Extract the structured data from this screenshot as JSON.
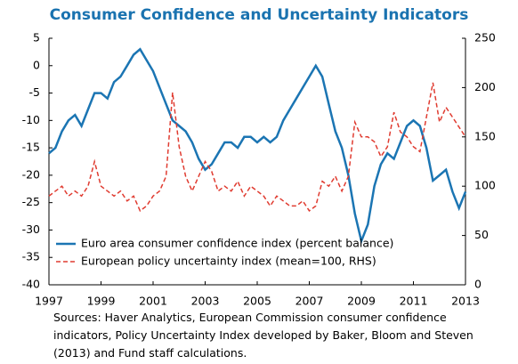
{
  "chart_data": {
    "type": "line",
    "title": "Consumer Confidence and Uncertainty Indicators",
    "note": "Sources: Haver Analytics, European Commission consumer confidence indicators, Policy Uncertainty Index developed by Baker, Bloom and Steven (2013) and Fund staff calculations.",
    "x": [
      1997,
      1997.25,
      1997.5,
      1997.75,
      1998,
      1998.25,
      1998.5,
      1998.75,
      1999,
      1999.25,
      1999.5,
      1999.75,
      2000,
      2000.25,
      2000.5,
      2000.75,
      2001,
      2001.25,
      2001.5,
      2001.75,
      2002,
      2002.25,
      2002.5,
      2002.75,
      2003,
      2003.25,
      2003.5,
      2003.75,
      2004,
      2004.25,
      2004.5,
      2004.75,
      2005,
      2005.25,
      2005.5,
      2005.75,
      2006,
      2006.25,
      2006.5,
      2006.75,
      2007,
      2007.25,
      2007.5,
      2007.75,
      2008,
      2008.25,
      2008.5,
      2008.75,
      2009,
      2009.25,
      2009.5,
      2009.75,
      2010,
      2010.25,
      2010.5,
      2010.75,
      2011,
      2011.25,
      2011.5,
      2011.75,
      2012,
      2012.25,
      2012.5,
      2012.75,
      2013
    ],
    "xlim": [
      1997,
      2013
    ],
    "xticks": [
      1997,
      1999,
      2001,
      2003,
      2005,
      2007,
      2009,
      2011,
      2013
    ],
    "ylim": [
      -40,
      5
    ],
    "yticks": [
      -40,
      -35,
      -30,
      -25,
      -20,
      -15,
      -10,
      -5,
      0,
      5
    ],
    "y2lim": [
      0,
      250
    ],
    "y2ticks": [
      0,
      50,
      100,
      150,
      200,
      250
    ],
    "legend": "lower left",
    "series": [
      {
        "name": "Euro area consumer confidence index (percent balance)",
        "color": "#1b75b3",
        "dash": false,
        "values": [
          -16,
          -15,
          -12,
          -10,
          -9,
          -11,
          -8,
          -5,
          -5,
          -6,
          -3,
          -2,
          0,
          2,
          3,
          1,
          -1,
          -4,
          -7,
          -10,
          -11,
          -12,
          -14,
          -17,
          -19,
          -18,
          -16,
          -14,
          -14,
          -15,
          -13,
          -13,
          -14,
          -13,
          -14,
          -13,
          -10,
          -8,
          -6,
          -4,
          -2,
          0,
          -2,
          -7,
          -12,
          -15,
          -20,
          -27,
          -32,
          -29,
          -22,
          -18,
          -16,
          -17,
          -14,
          -11,
          -10,
          -11,
          -15,
          -21,
          -20,
          -19,
          -23,
          -26,
          -23
        ]
      },
      {
        "name": "European policy uncertainty index (mean=100, RHS)",
        "color": "#e03c31",
        "dash": true,
        "axis": "y2",
        "values": [
          90,
          95,
          100,
          90,
          95,
          90,
          100,
          125,
          100,
          95,
          90,
          95,
          85,
          90,
          75,
          80,
          90,
          95,
          110,
          195,
          140,
          110,
          95,
          110,
          125,
          115,
          95,
          100,
          95,
          105,
          90,
          100,
          95,
          90,
          80,
          90,
          85,
          80,
          80,
          85,
          75,
          80,
          105,
          100,
          110,
          95,
          110,
          165,
          150,
          150,
          145,
          130,
          140,
          175,
          155,
          150,
          140,
          135,
          170,
          205,
          165,
          180,
          170,
          160,
          150
        ]
      }
    ]
  }
}
